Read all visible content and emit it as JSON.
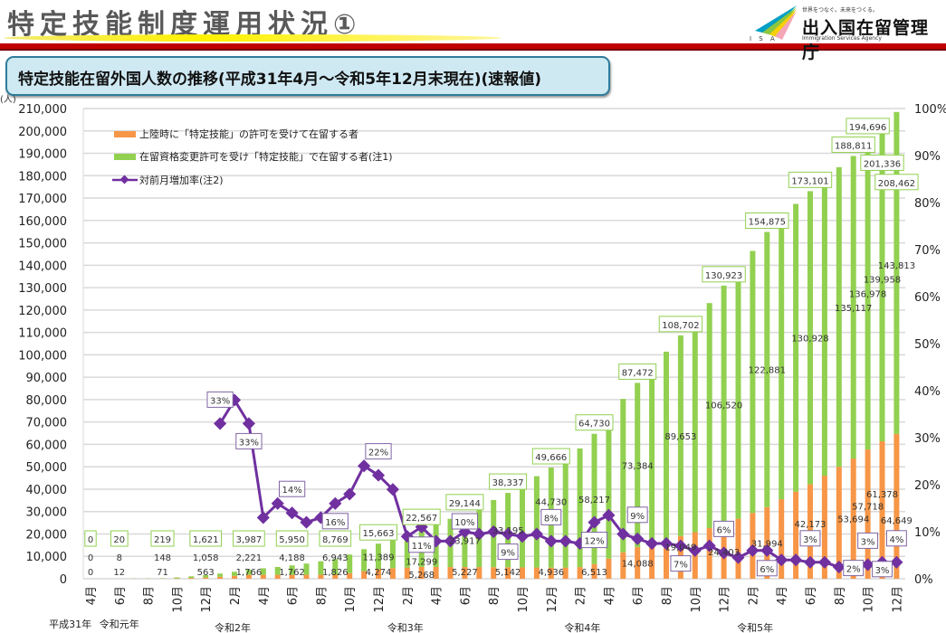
{
  "header": {
    "title": "特定技能制度運用状況①",
    "subtitle": "特定技能在留外国人数の推移(平成31年4月～令和5年12月末現在)(速報値)"
  },
  "logo": {
    "tagline": "世界をつなぐ。未来をつくる。",
    "name": "出入国在留管理庁",
    "english": "Immigration Services Agency",
    "abbr": "I S A"
  },
  "chart_data": {
    "type": "bar",
    "stacked": true,
    "title": "特定技能在留外国人数の推移(平成31年4月～令和5年12月末現在)(速報値)",
    "ylabel": "(人)",
    "ylim": [
      0,
      210000
    ],
    "y2lim": [
      0,
      100
    ],
    "y_ticks": [
      "0",
      "10,000",
      "20,000",
      "30,000",
      "40,000",
      "50,000",
      "60,000",
      "70,000",
      "80,000",
      "90,000",
      "100,000",
      "110,000",
      "120,000",
      "130,000",
      "140,000",
      "150,000",
      "160,000",
      "170,000",
      "180,000",
      "190,000",
      "200,000",
      "210,000"
    ],
    "y2_ticks": [
      "0%",
      "10%",
      "20%",
      "30%",
      "40%",
      "50%",
      "60%",
      "70%",
      "80%",
      "90%",
      "100%"
    ],
    "grid": true,
    "legend_position": "top-left",
    "month_labels": [
      "4月",
      "6月",
      "8月",
      "10月",
      "12月",
      "2月",
      "4月",
      "6月",
      "8月",
      "10月",
      "12月",
      "2月",
      "4月",
      "6月",
      "8月",
      "10月",
      "12月",
      "2月",
      "4月",
      "6月",
      "8月",
      "10月",
      "12月",
      "2月",
      "4月",
      "6月",
      "8月",
      "10月",
      "12月"
    ],
    "year_labels": [
      {
        "label": "平成31年",
        "index": -1.5
      },
      {
        "label": "令和元年",
        "index": 2
      },
      {
        "label": "令和2年",
        "index": 10
      },
      {
        "label": "令和3年",
        "index": 22
      },
      {
        "label": "令和4年",
        "index": 34.3
      },
      {
        "label": "令和5年",
        "index": 46.3
      }
    ],
    "colors": {
      "landing": "#f79646",
      "change": "#92d050",
      "rate": "#7030a0"
    },
    "series": [
      {
        "name": "上陸時に「特定技能」の許可を受けて在留する者",
        "key": "landing",
        "values": [
          0,
          5,
          12,
          30,
          50,
          71,
          200,
          380,
          563,
          900,
          1300,
          1766,
          1770,
          1765,
          1762,
          1780,
          1800,
          1826,
          2500,
          3400,
          4274,
          4700,
          5000,
          5268,
          5250,
          5240,
          5227,
          5200,
          5170,
          5142,
          5080,
          5000,
          4936,
          5000,
          5200,
          6513,
          9000,
          11800,
          14088,
          15700,
          17400,
          19049,
          20800,
          22600,
          24403,
          26800,
          29400,
          31994,
          35500,
          38900,
          42173,
          46000,
          50000,
          53694,
          57718,
          61378,
          64649
        ]
      },
      {
        "name": "在留資格変更許可を受け「特定技能」で在留する者(注1)",
        "key": "change",
        "values": [
          0,
          3,
          8,
          40,
          90,
          148,
          400,
          700,
          1058,
          1400,
          1800,
          2221,
          2900,
          3500,
          4188,
          5000,
          6000,
          6943,
          8300,
          9800,
          11389,
          13300,
          15300,
          17299,
          19300,
          21500,
          23917,
          26800,
          30000,
          33195,
          36900,
          40800,
          44730,
          49000,
          53000,
          58217,
          64000,
          68500,
          73384,
          78500,
          84000,
          89653,
          95000,
          100500,
          106520,
          112000,
          117000,
          122881,
          126000,
          128500,
          130928,
          132500,
          133800,
          135117,
          136978,
          139958,
          143813
        ]
      },
      {
        "name": "対前月増加率(注2)",
        "key": "rate",
        "axis": "right",
        "start_index": 9,
        "values": [
          33,
          38,
          33,
          13,
          16,
          14,
          12,
          13,
          16,
          18,
          24,
          22,
          19,
          9,
          11,
          8,
          8,
          10,
          9.5,
          10,
          9.5,
          9,
          9.5,
          8,
          8,
          7.5,
          12,
          13.5,
          9.5,
          8.5,
          7.5,
          7.5,
          7,
          6,
          7,
          5.5,
          4.5,
          6,
          6,
          4,
          4,
          3.5,
          3.5,
          2.5,
          2,
          3,
          3.5,
          3.5
        ]
      }
    ],
    "value_labels": [
      {
        "index": 0,
        "total": "0",
        "change": "0",
        "landing": "0"
      },
      {
        "index": 2,
        "total": "20",
        "change": "8",
        "landing": "12"
      },
      {
        "index": 5,
        "total": "219",
        "change": "148",
        "landing": "71"
      },
      {
        "index": 8,
        "total": "1,621",
        "change": "1,058",
        "landing": "563"
      },
      {
        "index": 11,
        "total": "3,987",
        "change": "2,221",
        "landing": "1,766"
      },
      {
        "index": 14,
        "total": "5,950",
        "change": "4,188",
        "landing": "1,762"
      },
      {
        "index": 17,
        "total": "8,769",
        "change": "6,943",
        "landing": "1,826"
      },
      {
        "index": 20,
        "total": "15,663",
        "change": "11,389",
        "landing": "4,274"
      },
      {
        "index": 23,
        "total": "22,567",
        "change": "17,299",
        "landing": "5,268"
      },
      {
        "index": 26,
        "total": "29,144",
        "change": "23,917",
        "landing": "5,227"
      },
      {
        "index": 29,
        "total": "38,337",
        "change": "33,195",
        "landing": "5,142"
      },
      {
        "index": 32,
        "total": "49,666",
        "change": "44,730",
        "landing": "4,936"
      },
      {
        "index": 35,
        "total": "64,730",
        "change": "58,217",
        "landing": "6,513"
      },
      {
        "index": 38,
        "total": "87,472",
        "change": "73,384",
        "landing": "14,088"
      },
      {
        "index": 41,
        "total": "108,702",
        "change": "89,653",
        "landing": "19,049"
      },
      {
        "index": 44,
        "total": "130,923",
        "change": "106,520",
        "landing": "24,403"
      },
      {
        "index": 47,
        "total": "154,875",
        "change": "122,881",
        "landing": "31,994"
      },
      {
        "index": 50,
        "total": "173,101",
        "change": "130,928",
        "landing": "42,173"
      },
      {
        "index": 53,
        "total": "188,811",
        "change": "135,117",
        "landing": "53,694"
      },
      {
        "index": 54,
        "total": "194,696",
        "change": "136,978",
        "landing": "57,718"
      },
      {
        "index": 55,
        "total": "201,336",
        "change": "139,958",
        "landing": "61,378"
      },
      {
        "index": 56,
        "total": "208,462",
        "change": "143,813",
        "landing": "64,649"
      }
    ],
    "rate_labels": [
      {
        "index": 9,
        "label": "33%"
      },
      {
        "index": 11,
        "label": "33%"
      },
      {
        "index": 14,
        "label": "14%"
      },
      {
        "index": 17,
        "label": "16%"
      },
      {
        "index": 20,
        "label": "22%"
      },
      {
        "index": 23,
        "label": "11%"
      },
      {
        "index": 26,
        "label": "10%"
      },
      {
        "index": 29,
        "label": "9%"
      },
      {
        "index": 32,
        "label": "8%"
      },
      {
        "index": 35,
        "label": "12%"
      },
      {
        "index": 38,
        "label": "9%"
      },
      {
        "index": 41,
        "label": "7%"
      },
      {
        "index": 44,
        "label": "6%"
      },
      {
        "index": 47,
        "label": "6%"
      },
      {
        "index": 50,
        "label": "3%"
      },
      {
        "index": 53,
        "label": "2%"
      },
      {
        "index": 54,
        "label": "3%"
      },
      {
        "index": 55,
        "label": "3%"
      },
      {
        "index": 56,
        "label": "4%"
      }
    ]
  }
}
